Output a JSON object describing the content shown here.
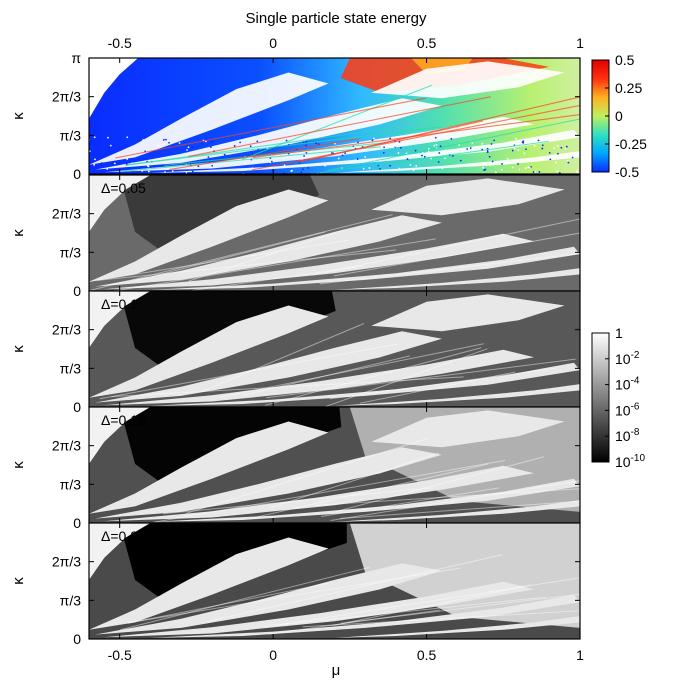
{
  "chart_data": {
    "type": "heatmap",
    "top_title": "Single particle state energy",
    "xlabel": "μ",
    "ylabel": "κ",
    "xlim": [
      -0.6,
      1.0
    ],
    "ylim": [
      0,
      3.14159
    ],
    "x_ticks": [
      {
        "value": -0.5,
        "label": "-0.5"
      },
      {
        "value": 0,
        "label": "0"
      },
      {
        "value": 0.5,
        "label": "0.5"
      },
      {
        "value": 1,
        "label": "1"
      }
    ],
    "y_ticks_top": [
      {
        "value": 0,
        "label": "0"
      },
      {
        "value": 1.0472,
        "label": "π/3"
      },
      {
        "value": 2.0944,
        "label": "2π/3"
      },
      {
        "value": 3.14159,
        "label": "π"
      }
    ],
    "y_ticks": [
      {
        "value": 0,
        "label": "0"
      },
      {
        "value": 1.0472,
        "label": "π/3"
      },
      {
        "value": 2.0944,
        "label": "2π/3"
      }
    ],
    "panels": [
      {
        "label": "",
        "kind": "energy"
      },
      {
        "label": "Δ=0.05",
        "kind": "gap",
        "delta": 0.05
      },
      {
        "label": "Δ=0.1",
        "kind": "gap",
        "delta": 0.1
      },
      {
        "label": "Δ=0.15",
        "kind": "gap",
        "delta": 0.15
      },
      {
        "label": "Δ=0.2",
        "kind": "gap",
        "delta": 0.2
      }
    ],
    "colorbar_energy": {
      "range": [
        -0.5,
        0.5
      ],
      "ticks": [
        {
          "value": 0.5,
          "label": "0.5"
        },
        {
          "value": 0.25,
          "label": "0.25"
        },
        {
          "value": 0,
          "label": "0"
        },
        {
          "value": -0.25,
          "label": "-0.25"
        },
        {
          "value": -0.5,
          "label": "-0.5"
        }
      ],
      "colors": [
        "#0a2cff",
        "#00a7ff",
        "#30e0c0",
        "#bff060",
        "#ffb020",
        "#ff3010",
        "#e00000"
      ]
    },
    "colorbar_gap": {
      "scale": "log",
      "range_exponent": [
        -10,
        0
      ],
      "ticks": [
        {
          "exponent": 0,
          "base": "1",
          "exp": ""
        },
        {
          "exponent": -2,
          "base": "10",
          "exp": "-2"
        },
        {
          "exponent": -4,
          "base": "10",
          "exp": "-4"
        },
        {
          "exponent": -6,
          "base": "10",
          "exp": "-6"
        },
        {
          "exponent": -8,
          "base": "10",
          "exp": "-8"
        },
        {
          "exponent": -10,
          "base": "10",
          "exp": "-10"
        }
      ],
      "colors": [
        "#000000",
        "#ffffff"
      ]
    }
  }
}
